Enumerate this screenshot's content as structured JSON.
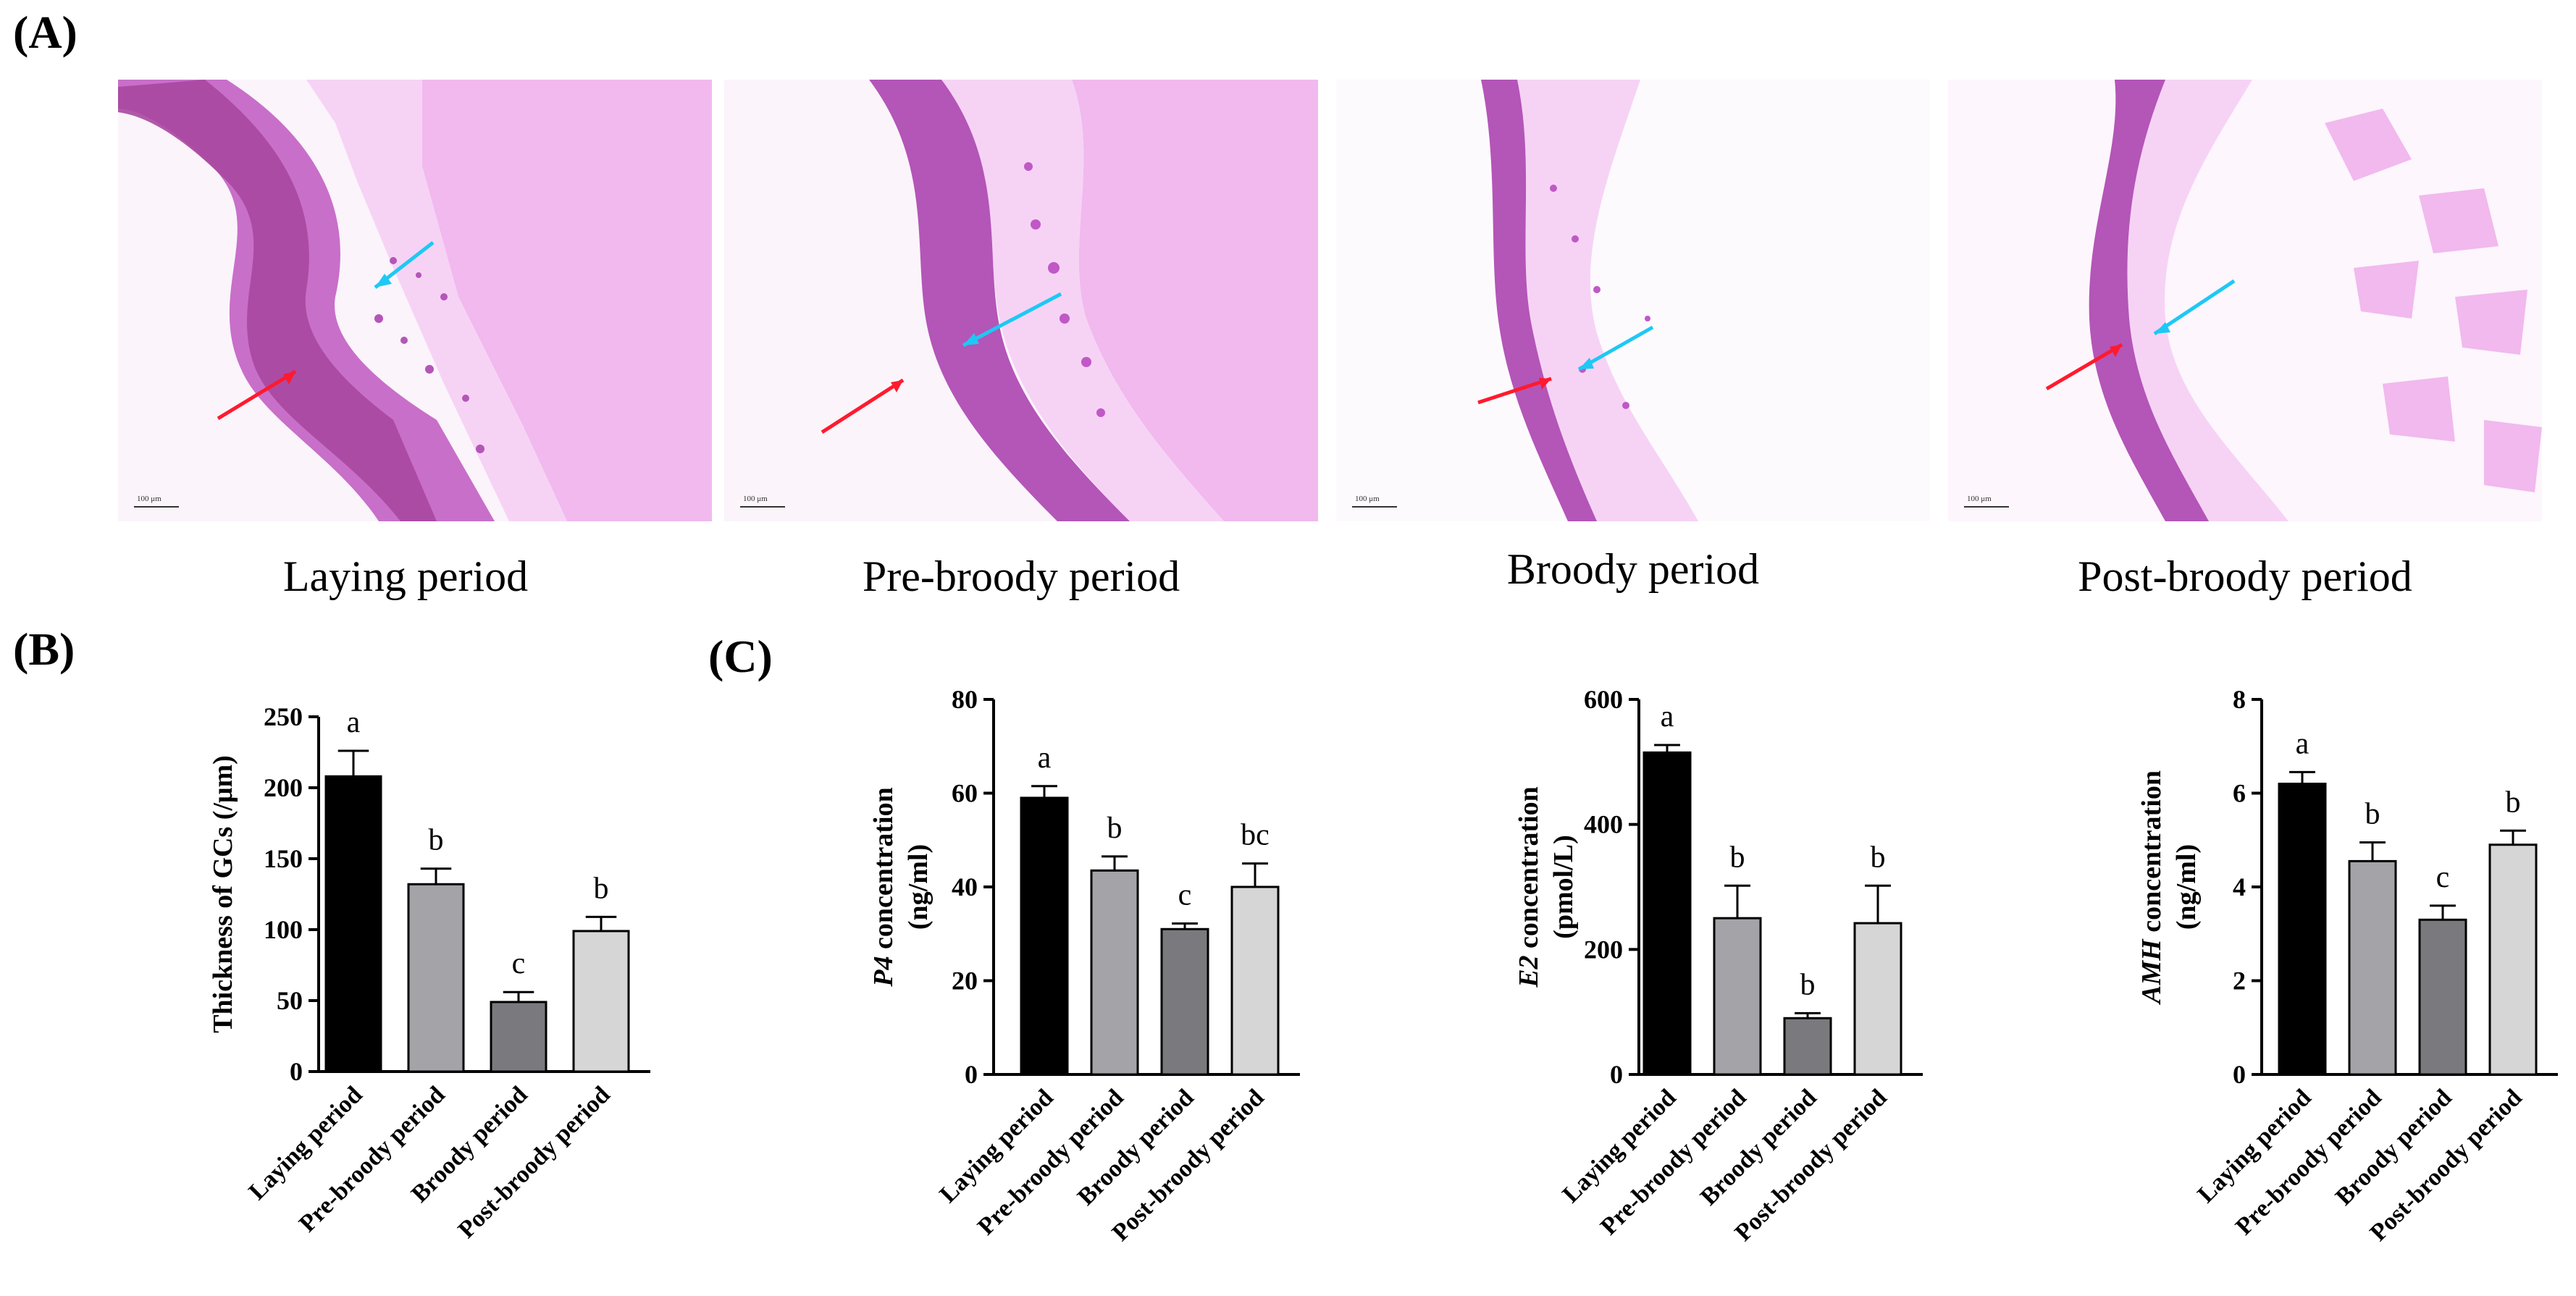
{
  "panels": {
    "a": "(A)",
    "b": "(B)",
    "c": "(C)"
  },
  "micrographs": [
    {
      "caption": "Laying period",
      "scalebar": "100 μm"
    },
    {
      "caption": "Pre-broody period",
      "scalebar": "100 μm"
    },
    {
      "caption": "Broody period",
      "scalebar": "100 μm"
    },
    {
      "caption": "Post-broody period",
      "scalebar": "100 μm"
    }
  ],
  "colors": {
    "laying": "#000000",
    "pre": "#a3a3a8",
    "broody": "#7a7a7e",
    "post": "#d6d6d6",
    "arrow_red": "#ff1a2e",
    "arrow_blue": "#1ec8f5",
    "tissue_dark": "#b455b8",
    "tissue_mid": "#dc8cdc",
    "yolk": "#f1b9ee"
  },
  "chart_data": [
    {
      "id": "thickness",
      "type": "bar",
      "ylabel": "Thickness of GCs (/μm)",
      "categories": [
        "Laying period",
        "Pre-broody period",
        "Broody period",
        "Post-broody period"
      ],
      "values": [
        208,
        132,
        49,
        99
      ],
      "errors": [
        18,
        11,
        7,
        10
      ],
      "letters": [
        "a",
        "b",
        "c",
        "b"
      ],
      "ylim": [
        0,
        250
      ],
      "ticks": [
        0,
        50,
        100,
        150,
        200,
        250
      ]
    },
    {
      "id": "p4",
      "type": "bar",
      "ylabel_italic": "P4",
      "ylabel_rest": " concentration",
      "ylabel_unit": "(ng/ml)",
      "categories": [
        "Laying period",
        "Pre-broody period",
        "Broody period",
        "Post-broody period"
      ],
      "values": [
        59,
        43.5,
        31,
        40
      ],
      "errors": [
        2.5,
        3,
        1.2,
        5
      ],
      "letters": [
        "a",
        "b",
        "c",
        "bc"
      ],
      "ylim": [
        0,
        80
      ],
      "ticks": [
        0,
        20,
        40,
        60,
        80
      ]
    },
    {
      "id": "e2",
      "type": "bar",
      "ylabel_italic": "E2",
      "ylabel_rest": " concentration",
      "ylabel_unit": "(pmol/L)",
      "categories": [
        "Laying period",
        "Pre-broody period",
        "Broody period",
        "Post-broody period"
      ],
      "values": [
        515,
        250,
        90,
        242
      ],
      "errors": [
        12,
        52,
        8,
        60
      ],
      "letters": [
        "a",
        "b",
        "b",
        "b"
      ],
      "ylim": [
        0,
        600
      ],
      "ticks": [
        0,
        200,
        400,
        600
      ]
    },
    {
      "id": "amh",
      "type": "bar",
      "ylabel_italic": "AMH",
      "ylabel_rest": " concentration",
      "ylabel_unit": "(ng/ml)",
      "categories": [
        "Laying period",
        "Pre-broody period",
        "Broody period",
        "Post-broody period"
      ],
      "values": [
        6.2,
        4.55,
        3.3,
        4.9
      ],
      "errors": [
        0.25,
        0.4,
        0.3,
        0.3
      ],
      "letters": [
        "a",
        "b",
        "c",
        "b"
      ],
      "ylim": [
        0,
        8
      ],
      "ticks": [
        0,
        2,
        4,
        6,
        8
      ]
    }
  ]
}
